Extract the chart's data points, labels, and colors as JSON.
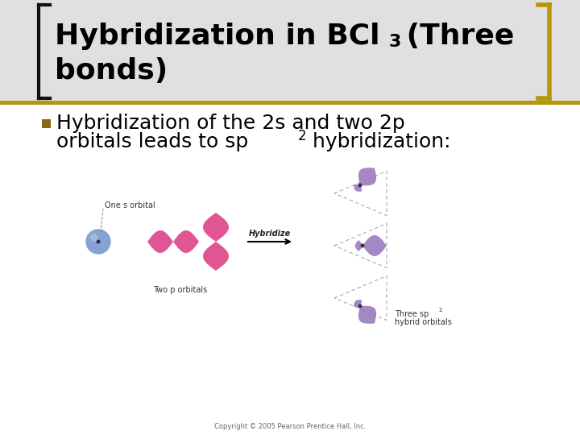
{
  "bg_color": "#ffffff",
  "title_color": "#000000",
  "title_fontsize": 26,
  "header_bg_color": "#e0e0e0",
  "header_bar_color": "#b8960c",
  "bracket_color": "#111111",
  "bullet_color": "#8B6914",
  "bullet_text_line1": "Hybridization of the 2s and two 2p",
  "bullet_text_line2": "orbitals leads to sp",
  "bullet_text_sup": "2",
  "bullet_text_line2_suffix": " hybridization:",
  "bullet_fontsize": 18,
  "label_one_s": "One s orbital",
  "label_two_p": "Two p orbitals",
  "label_hybridize": "Hybridize",
  "label_three_sp2_line1": "Three sp",
  "label_three_sp2_sup": "2",
  "label_three_sp2_line2": "hybrid orbitals",
  "copyright": "Copyright © 2005 Pearson Prentice Hall, Inc.",
  "s_orbital_color": "#7799cc",
  "p_orbital_color": "#dd4488",
  "sp2_orbital_color": "#9977bb",
  "sp2_small_color": "#bb99dd",
  "arrow_color": "#000000",
  "label_fontsize": 7,
  "fig_w": 7.2,
  "fig_h": 5.4,
  "dpi": 100
}
